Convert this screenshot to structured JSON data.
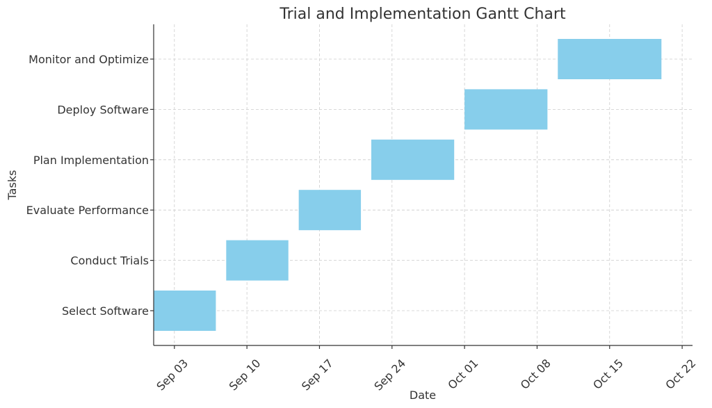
{
  "chart_data": {
    "type": "gantt",
    "title": "Trial and Implementation Gantt Chart",
    "xlabel": "Date",
    "ylabel": "Tasks",
    "x_range": [
      "2024-09-01",
      "2024-10-23"
    ],
    "x_ticks": [
      {
        "date": "2024-09-03",
        "label": "Sep 03"
      },
      {
        "date": "2024-09-10",
        "label": "Sep 10"
      },
      {
        "date": "2024-09-17",
        "label": "Sep 17"
      },
      {
        "date": "2024-09-24",
        "label": "Sep 24"
      },
      {
        "date": "2024-10-01",
        "label": "Oct 01"
      },
      {
        "date": "2024-10-08",
        "label": "Oct 08"
      },
      {
        "date": "2024-10-15",
        "label": "Oct 15"
      },
      {
        "date": "2024-10-22",
        "label": "Oct 22"
      }
    ],
    "tasks": [
      {
        "name": "Select Software",
        "start": "2024-09-01",
        "end": "2024-09-07"
      },
      {
        "name": "Conduct Trials",
        "start": "2024-09-08",
        "end": "2024-09-14"
      },
      {
        "name": "Evaluate Performance",
        "start": "2024-09-15",
        "end": "2024-09-21"
      },
      {
        "name": "Plan Implementation",
        "start": "2024-09-22",
        "end": "2024-09-30"
      },
      {
        "name": "Deploy Software",
        "start": "2024-10-01",
        "end": "2024-10-09"
      },
      {
        "name": "Monitor and Optimize",
        "start": "2024-10-10",
        "end": "2024-10-20"
      }
    ],
    "bar_color": "#87CEEB",
    "grid": true
  }
}
